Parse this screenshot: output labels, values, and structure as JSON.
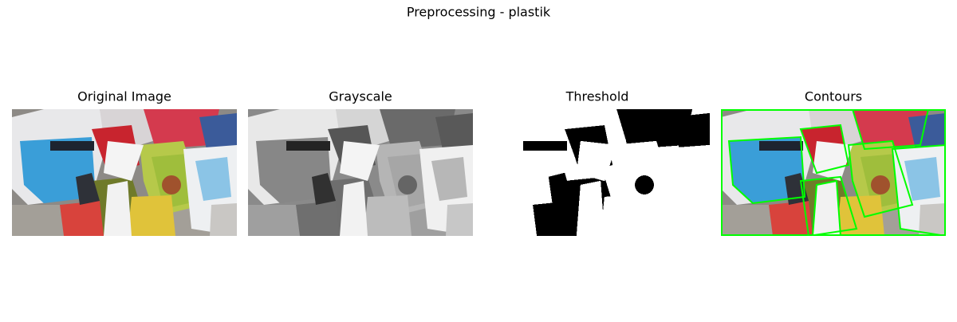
{
  "title": "Preprocessing - plastik",
  "panels": [
    {
      "title": "Original Image"
    },
    {
      "title": "Grayscale"
    },
    {
      "title": "Threshold"
    },
    {
      "title": "Contours"
    }
  ]
}
